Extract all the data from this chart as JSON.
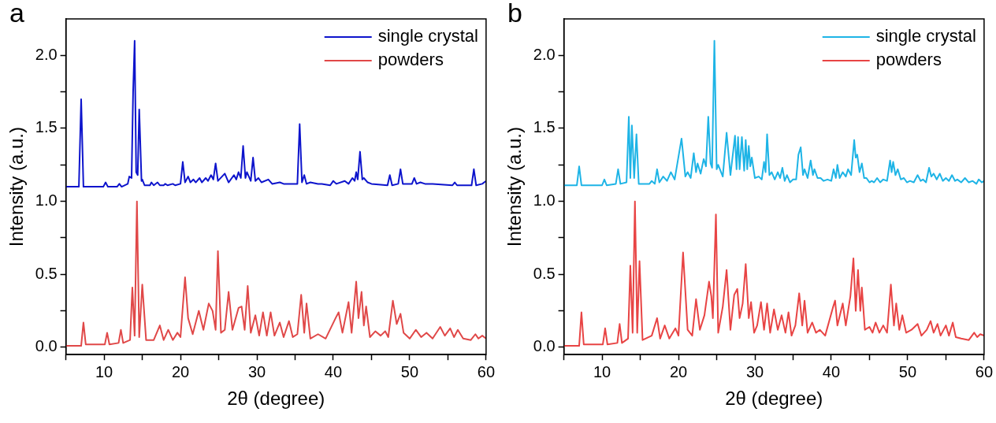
{
  "chart_data": [
    {
      "type": "line",
      "title": "a",
      "xlabel": "2θ (degree)",
      "ylabel": "Intensity (a.u.)",
      "xlim": [
        5,
        60
      ],
      "ylim": [
        -0.05,
        2.25
      ],
      "xticks": [
        {
          "value": 5,
          "label": null
        },
        10,
        {
          "value": 15,
          "label": null
        },
        20,
        {
          "value": 25,
          "label": null
        },
        30,
        {
          "value": 35,
          "label": null
        },
        40,
        {
          "value": 45,
          "label": null
        },
        50,
        {
          "value": 55,
          "label": null
        },
        60
      ],
      "yticks": [
        {
          "value": 0,
          "label": "0.0"
        },
        {
          "value": 0.25,
          "label": null
        },
        {
          "value": 0.5,
          "label": "0.5"
        },
        {
          "value": 0.75,
          "label": null
        },
        {
          "value": 1,
          "label": "1.0"
        },
        {
          "value": 1.25,
          "label": null
        },
        {
          "value": 1.5,
          "label": "1.5"
        },
        {
          "value": 1.75,
          "label": null
        },
        {
          "value": 2,
          "label": "2.0"
        }
      ],
      "legend": "top right",
      "series": [
        {
          "name": "single crystal",
          "color": "#0d14cc",
          "x": [
            5,
            6.7,
            7.0,
            7.3,
            9.9,
            10.2,
            10.5,
            11.7,
            12.0,
            12.3,
            13.1,
            13.3,
            13.6,
            13.8,
            14.0,
            14.2,
            14.4,
            14.6,
            14.9,
            15.0,
            15.3,
            16.0,
            16.2,
            16.5,
            17.0,
            17.3,
            17.8,
            18.0,
            18.3,
            19.0,
            19.3,
            20.0,
            20.3,
            20.6,
            21.0,
            21.3,
            21.7,
            22.0,
            22.5,
            22.8,
            23.3,
            23.6,
            24.0,
            24.3,
            24.6,
            24.9,
            25.8,
            26.3,
            27.0,
            27.3,
            27.6,
            27.9,
            28.2,
            28.5,
            28.7,
            29.2,
            29.5,
            29.8,
            30.2,
            30.6,
            31.5,
            32,
            33,
            33.5,
            34.5,
            35.3,
            35.6,
            35.9,
            36.2,
            36.5,
            37,
            38,
            38.5,
            39.6,
            40.0,
            40.4,
            41.5,
            42,
            42.5,
            42.8,
            43.0,
            43.2,
            43.5,
            43.8,
            44.0,
            44.5,
            45,
            47.1,
            47.4,
            47.7,
            48.5,
            48.8,
            49.1,
            50.3,
            50.6,
            50.9,
            51.4,
            52,
            53,
            55.6,
            55.9,
            56.2,
            58.1,
            58.4,
            58.7,
            59.5,
            60
          ],
          "values": [
            1.1,
            1.1,
            1.7,
            1.1,
            1.1,
            1.13,
            1.1,
            1.1,
            1.12,
            1.1,
            1.12,
            1.17,
            1.16,
            1.75,
            2.1,
            1.2,
            1.18,
            1.63,
            1.14,
            1.15,
            1.11,
            1.11,
            1.13,
            1.11,
            1.13,
            1.11,
            1.11,
            1.12,
            1.11,
            1.12,
            1.11,
            1.12,
            1.27,
            1.13,
            1.17,
            1.13,
            1.15,
            1.13,
            1.16,
            1.13,
            1.16,
            1.14,
            1.18,
            1.15,
            1.26,
            1.14,
            1.19,
            1.13,
            1.18,
            1.15,
            1.2,
            1.16,
            1.38,
            1.16,
            1.2,
            1.14,
            1.3,
            1.14,
            1.16,
            1.13,
            1.15,
            1.12,
            1.13,
            1.12,
            1.12,
            1.12,
            1.53,
            1.13,
            1.18,
            1.12,
            1.13,
            1.12,
            1.12,
            1.11,
            1.14,
            1.12,
            1.14,
            1.12,
            1.16,
            1.14,
            1.2,
            1.15,
            1.34,
            1.15,
            1.16,
            1.13,
            1.12,
            1.11,
            1.18,
            1.11,
            1.12,
            1.22,
            1.12,
            1.12,
            1.16,
            1.12,
            1.13,
            1.12,
            1.12,
            1.11,
            1.13,
            1.11,
            1.11,
            1.22,
            1.11,
            1.12,
            1.14
          ]
        },
        {
          "name": "powders",
          "color": "#e04848",
          "x": [
            5,
            7.0,
            7.3,
            7.6,
            10.1,
            10.4,
            10.7,
            11.9,
            12.2,
            12.5,
            13.4,
            13.7,
            14.0,
            14.3,
            14.6,
            15.0,
            15.5,
            16.5,
            17.3,
            17.8,
            18.4,
            19.0,
            19.6,
            20.0,
            20.6,
            21.0,
            21.6,
            22.4,
            23.0,
            23.7,
            24.2,
            24.6,
            24.9,
            25.3,
            25.8,
            26.3,
            26.8,
            27.6,
            28.0,
            28.4,
            28.8,
            29.2,
            29.8,
            30.3,
            30.8,
            31.3,
            31.8,
            32.3,
            33.0,
            33.5,
            34.2,
            34.7,
            35.3,
            35.8,
            36.2,
            36.5,
            37.0,
            38.0,
            39.0,
            40.3,
            40.7,
            41.2,
            42.0,
            42.4,
            43.0,
            43.3,
            43.7,
            44.0,
            44.3,
            44.8,
            45.5,
            46.2,
            46.8,
            47.2,
            47.8,
            48.3,
            48.8,
            49.2,
            50,
            50.8,
            51.5,
            52.2,
            53,
            54,
            54.6,
            55.3,
            55.8,
            56.3,
            57,
            58,
            58.6,
            59,
            59.5,
            60
          ],
          "values": [
            0.01,
            0.01,
            0.17,
            0.02,
            0.02,
            0.1,
            0.02,
            0.03,
            0.12,
            0.03,
            0.05,
            0.41,
            0.08,
            1.0,
            0.07,
            0.43,
            0.05,
            0.05,
            0.15,
            0.05,
            0.12,
            0.05,
            0.1,
            0.07,
            0.48,
            0.2,
            0.09,
            0.25,
            0.12,
            0.3,
            0.25,
            0.12,
            0.66,
            0.1,
            0.12,
            0.38,
            0.12,
            0.27,
            0.28,
            0.12,
            0.42,
            0.1,
            0.22,
            0.08,
            0.24,
            0.08,
            0.24,
            0.08,
            0.17,
            0.07,
            0.18,
            0.07,
            0.09,
            0.36,
            0.1,
            0.3,
            0.06,
            0.09,
            0.06,
            0.2,
            0.24,
            0.1,
            0.31,
            0.1,
            0.45,
            0.2,
            0.38,
            0.15,
            0.28,
            0.07,
            0.11,
            0.08,
            0.11,
            0.07,
            0.32,
            0.16,
            0.23,
            0.1,
            0.06,
            0.12,
            0.07,
            0.1,
            0.06,
            0.14,
            0.08,
            0.13,
            0.07,
            0.12,
            0.06,
            0.05,
            0.09,
            0.06,
            0.08,
            0.06
          ]
        }
      ]
    },
    {
      "type": "line",
      "title": "b",
      "xlabel": "2θ (degree)",
      "ylabel": "Intensity (a.u.)",
      "xlim": [
        5,
        60
      ],
      "ylim": [
        -0.05,
        2.25
      ],
      "xticks": [
        {
          "value": 5,
          "label": null
        },
        10,
        {
          "value": 15,
          "label": null
        },
        20,
        {
          "value": 25,
          "label": null
        },
        30,
        {
          "value": 35,
          "label": null
        },
        40,
        {
          "value": 45,
          "label": null
        },
        50,
        {
          "value": 55,
          "label": null
        },
        60
      ],
      "yticks": [
        {
          "value": 0,
          "label": "0.0"
        },
        {
          "value": 0.25,
          "label": null
        },
        {
          "value": 0.5,
          "label": "0.5"
        },
        {
          "value": 0.75,
          "label": null
        },
        {
          "value": 1,
          "label": "1.0"
        },
        {
          "value": 1.25,
          "label": null
        },
        {
          "value": 1.5,
          "label": "1.5"
        },
        {
          "value": 1.75,
          "label": null
        },
        {
          "value": 2,
          "label": "2.0"
        }
      ],
      "legend": "top right",
      "series": [
        {
          "name": "single crystal",
          "color": "#1eb4e6",
          "x": [
            5,
            6.7,
            7.0,
            7.3,
            10.0,
            10.3,
            10.6,
            11.8,
            12.1,
            12.4,
            13.2,
            13.5,
            13.7,
            13.9,
            14.2,
            14.5,
            14.8,
            16.2,
            16.5,
            16.9,
            17.2,
            17.5,
            18.0,
            18.5,
            19.0,
            19.5,
            20.4,
            20.9,
            21.2,
            21.6,
            22.0,
            22.3,
            22.5,
            22.9,
            23.3,
            23.6,
            23.9,
            24.2,
            24.4,
            24.7,
            25.0,
            25.2,
            25.8,
            26.3,
            26.8,
            27.4,
            27.6,
            27.8,
            28.0,
            28.3,
            28.6,
            28.8,
            29.0,
            29.2,
            29.4,
            29.6,
            30.0,
            30.5,
            30.9,
            31.2,
            31.4,
            31.6,
            31.9,
            32.2,
            32.6,
            33.0,
            33.3,
            33.6,
            33.9,
            34.2,
            34.6,
            35.0,
            35.4,
            35.7,
            36.0,
            36.3,
            36.5,
            36.9,
            37.3,
            37.6,
            37.8,
            38.2,
            38.6,
            39.0,
            39.5,
            40.0,
            40.3,
            40.6,
            40.8,
            41.1,
            41.5,
            41.9,
            42.2,
            42.6,
            43.0,
            43.2,
            43.4,
            43.7,
            44.0,
            44.3,
            44.6,
            45.0,
            45.3,
            45.6,
            46.0,
            46.4,
            46.8,
            47.3,
            47.7,
            47.9,
            48.1,
            48.4,
            48.7,
            49.1,
            49.5,
            49.9,
            50.3,
            50.8,
            51.3,
            51.7,
            52.0,
            52.4,
            52.8,
            53.1,
            53.4,
            53.8,
            54.2,
            54.6,
            55.0,
            55.4,
            55.8,
            56.2,
            56.5,
            57.0,
            57.5,
            58.0,
            58.5,
            59.0,
            59.3,
            59.7,
            60
          ],
          "values": [
            1.11,
            1.11,
            1.24,
            1.11,
            1.11,
            1.15,
            1.11,
            1.12,
            1.22,
            1.12,
            1.13,
            1.58,
            1.16,
            1.52,
            1.16,
            1.46,
            1.12,
            1.12,
            1.14,
            1.12,
            1.22,
            1.13,
            1.17,
            1.14,
            1.2,
            1.15,
            1.43,
            1.17,
            1.2,
            1.16,
            1.33,
            1.2,
            1.26,
            1.19,
            1.29,
            1.24,
            1.58,
            1.26,
            1.23,
            2.1,
            1.22,
            1.25,
            1.17,
            1.47,
            1.18,
            1.45,
            1.22,
            1.44,
            1.22,
            1.44,
            1.21,
            1.42,
            1.22,
            1.38,
            1.24,
            1.3,
            1.16,
            1.17,
            1.15,
            1.27,
            1.2,
            1.46,
            1.18,
            1.2,
            1.15,
            1.2,
            1.16,
            1.23,
            1.14,
            1.18,
            1.13,
            1.15,
            1.15,
            1.32,
            1.37,
            1.18,
            1.22,
            1.16,
            1.28,
            1.18,
            1.22,
            1.16,
            1.16,
            1.14,
            1.15,
            1.14,
            1.22,
            1.16,
            1.25,
            1.16,
            1.2,
            1.17,
            1.22,
            1.18,
            1.42,
            1.3,
            1.32,
            1.2,
            1.26,
            1.16,
            1.16,
            1.13,
            1.14,
            1.13,
            1.16,
            1.13,
            1.15,
            1.14,
            1.28,
            1.2,
            1.27,
            1.18,
            1.22,
            1.15,
            1.16,
            1.13,
            1.14,
            1.13,
            1.18,
            1.14,
            1.15,
            1.13,
            1.23,
            1.17,
            1.19,
            1.15,
            1.19,
            1.14,
            1.16,
            1.14,
            1.18,
            1.14,
            1.15,
            1.13,
            1.16,
            1.13,
            1.14,
            1.12,
            1.15,
            1.13,
            1.14
          ]
        },
        {
          "name": "powders",
          "color": "#e84444",
          "x": [
            5,
            7.0,
            7.3,
            7.6,
            10.1,
            10.4,
            10.7,
            12.0,
            12.3,
            12.6,
            13.4,
            13.7,
            14.0,
            14.3,
            14.6,
            14.9,
            15.3,
            16.5,
            17.2,
            17.6,
            18.2,
            18.8,
            19.6,
            20.0,
            20.6,
            21.2,
            21.8,
            22.3,
            22.8,
            23.4,
            24.0,
            24.3,
            24.5,
            24.9,
            25.2,
            25.8,
            26.3,
            26.8,
            27.3,
            27.7,
            28.0,
            28.4,
            28.8,
            29.2,
            29.5,
            29.9,
            30.3,
            30.8,
            31.2,
            31.6,
            32.0,
            32.5,
            33.0,
            33.5,
            34.0,
            34.4,
            34.8,
            35.3,
            35.8,
            36.2,
            36.5,
            36.9,
            37.5,
            38.0,
            38.5,
            39.2,
            40.2,
            40.5,
            40.8,
            41.5,
            41.9,
            42.5,
            42.9,
            43.2,
            43.5,
            43.8,
            44.0,
            44.4,
            45.0,
            45.4,
            45.8,
            46.3,
            46.8,
            47.3,
            47.8,
            48.2,
            48.5,
            48.9,
            49.3,
            49.8,
            50.5,
            51.3,
            51.8,
            52.5,
            53.0,
            53.4,
            53.9,
            54.3,
            55.0,
            55.4,
            55.9,
            56.3,
            57.0,
            58.0,
            58.7,
            59.1,
            59.5,
            60
          ],
          "values": [
            0.01,
            0.01,
            0.24,
            0.02,
            0.02,
            0.13,
            0.02,
            0.03,
            0.16,
            0.03,
            0.06,
            0.56,
            0.1,
            1.0,
            0.1,
            0.59,
            0.05,
            0.08,
            0.2,
            0.06,
            0.15,
            0.06,
            0.13,
            0.08,
            0.65,
            0.12,
            0.08,
            0.33,
            0.12,
            0.22,
            0.45,
            0.35,
            0.2,
            0.91,
            0.1,
            0.28,
            0.53,
            0.12,
            0.36,
            0.4,
            0.2,
            0.3,
            0.57,
            0.2,
            0.31,
            0.1,
            0.15,
            0.31,
            0.12,
            0.3,
            0.1,
            0.26,
            0.12,
            0.22,
            0.1,
            0.24,
            0.08,
            0.15,
            0.37,
            0.15,
            0.32,
            0.1,
            0.17,
            0.1,
            0.12,
            0.08,
            0.27,
            0.32,
            0.15,
            0.3,
            0.15,
            0.35,
            0.61,
            0.25,
            0.53,
            0.25,
            0.41,
            0.12,
            0.14,
            0.1,
            0.17,
            0.1,
            0.15,
            0.1,
            0.43,
            0.15,
            0.3,
            0.12,
            0.22,
            0.1,
            0.12,
            0.16,
            0.08,
            0.12,
            0.18,
            0.1,
            0.16,
            0.08,
            0.15,
            0.08,
            0.17,
            0.07,
            0.06,
            0.05,
            0.1,
            0.07,
            0.09,
            0.08
          ]
        }
      ]
    }
  ]
}
